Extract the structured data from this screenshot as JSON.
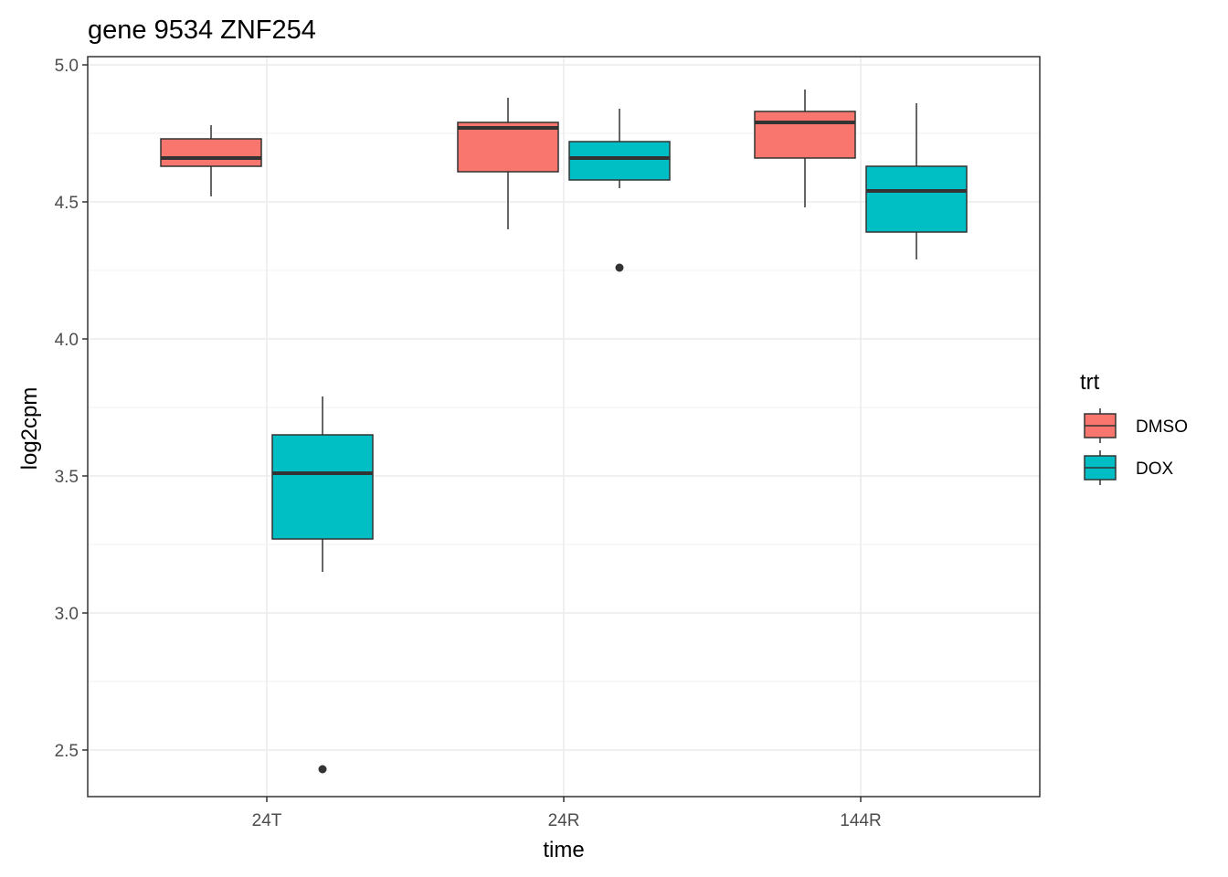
{
  "chart_data": {
    "type": "box",
    "title": "gene 9534 ZNF254",
    "xlabel": "time",
    "ylabel": "log2cpm",
    "categories": [
      "24T",
      "24R",
      "144R"
    ],
    "ylim": [
      2.33,
      5.03
    ],
    "y_ticks": [
      2.5,
      3.0,
      3.5,
      4.0,
      4.5,
      5.0
    ],
    "y_tick_labels": [
      "2.5",
      "3.0",
      "3.5",
      "4.0",
      "4.5",
      "5.0"
    ],
    "grid": true,
    "legend": {
      "title": "trt",
      "position": "right"
    },
    "series": [
      {
        "name": "DMSO",
        "color": "#F8766D",
        "boxes": [
          {
            "category": "24T",
            "min": 4.52,
            "q1": 4.63,
            "median": 4.66,
            "q3": 4.73,
            "max": 4.78,
            "outliers": []
          },
          {
            "category": "24R",
            "min": 4.4,
            "q1": 4.61,
            "median": 4.77,
            "q3": 4.79,
            "max": 4.88,
            "outliers": []
          },
          {
            "category": "144R",
            "min": 4.48,
            "q1": 4.66,
            "median": 4.79,
            "q3": 4.83,
            "max": 4.91,
            "outliers": []
          }
        ]
      },
      {
        "name": "DOX",
        "color": "#00BFC4",
        "boxes": [
          {
            "category": "24T",
            "min": 3.15,
            "q1": 3.27,
            "median": 3.51,
            "q3": 3.65,
            "max": 3.79,
            "outliers": [
              2.43
            ]
          },
          {
            "category": "24R",
            "min": 4.55,
            "q1": 4.58,
            "median": 4.66,
            "q3": 4.72,
            "max": 4.84,
            "outliers": [
              4.26
            ]
          },
          {
            "category": "144R",
            "min": 4.29,
            "q1": 4.39,
            "median": 4.54,
            "q3": 4.63,
            "max": 4.86,
            "outliers": []
          }
        ]
      }
    ]
  }
}
